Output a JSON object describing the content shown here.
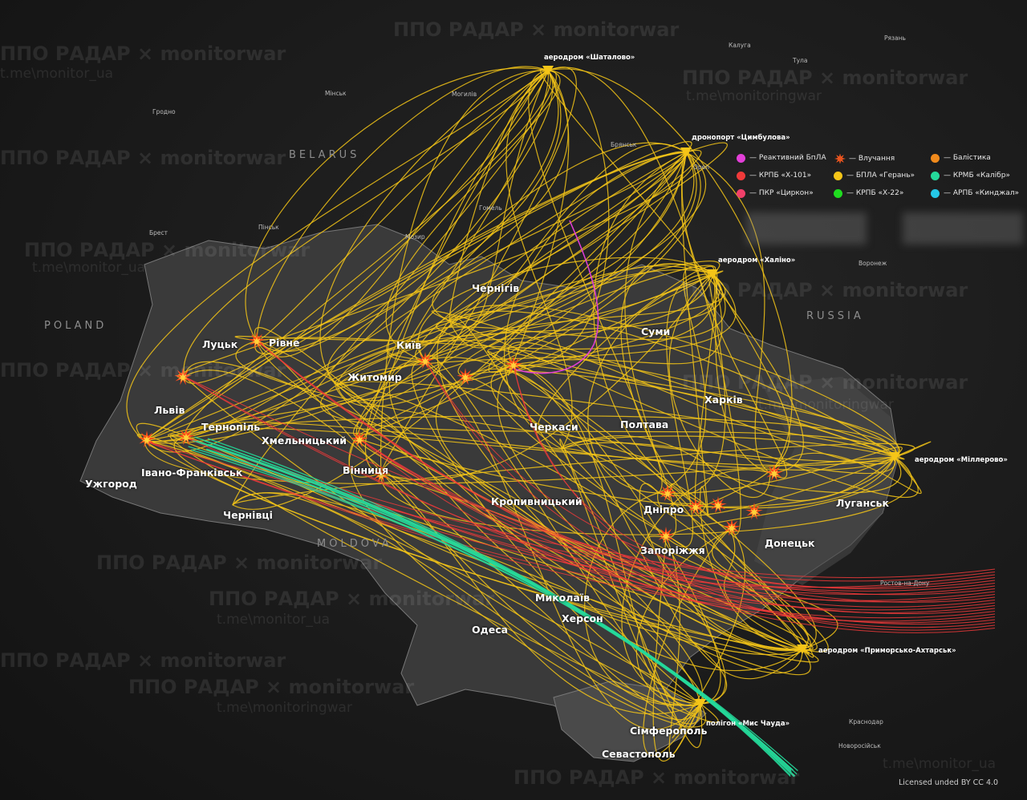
{
  "countries": [
    "BELARUS",
    "POLAND",
    "RUSSIA",
    "MOLDOVA"
  ],
  "major_cities": [
    "Луцьк",
    "Рівне",
    "Київ",
    "Житомир",
    "Чернігів",
    "Суми",
    "Харків",
    "Львів",
    "Тернопіль",
    "Хмельницький",
    "Вінниця",
    "Черкаси",
    "Полтава",
    "Івано-Франківськ",
    "Ужгород",
    "Чернівці",
    "Кропивницький",
    "Дніпро",
    "Луганськ",
    "Донецьк",
    "Запоріжжя",
    "Миколаїв",
    "Херсон",
    "Одеса",
    "Сімферополь",
    "Севастополь"
  ],
  "minor_cities": [
    "Мінськ",
    "Гродно",
    "Могилів",
    "Калуга",
    "Тула",
    "Рязань",
    "Брянськ",
    "Орел",
    "Гомель",
    "Мозир",
    "Пінськ",
    "Брест",
    "Воронеж",
    "Ростов-на-Дону",
    "Краснодар",
    "Новоросійськ"
  ],
  "targets": [
    "аеродром «Шаталово»",
    "дронопорт «Цимбулова»",
    "аеродром «Халіно»",
    "аеродром «Міллерово»",
    "аеродром «Приморсько-Ахтарськ»",
    "полігон «Мис Чауда»"
  ],
  "legend": [
    {
      "label": "— Реактивний БпЛА",
      "color": "#e33fd8"
    },
    {
      "label": "— Влучання",
      "icon": "explosion-icon",
      "color": "#e8541f"
    },
    {
      "label": "— Балістика",
      "color": "#f08a1c"
    },
    {
      "label": "— КРПБ «Х-101»",
      "color": "#f03a3a"
    },
    {
      "label": "— БПЛА «Герань»",
      "color": "#f5c518"
    },
    {
      "label": "— КРМБ «Калібр»",
      "color": "#25d99a"
    },
    {
      "label": "— ПКР «Циркон»",
      "color": "#f0406a"
    },
    {
      "label": "— КРПБ «Х-22»",
      "color": "#1fdc1f"
    },
    {
      "label": "— АРПБ «Кинджал»",
      "color": "#25c8e8"
    }
  ],
  "watermarks": [
    "ППО РАДАР × monitorwar",
    "t.me\\monitor_ua",
    "t.me\\monitoringwar"
  ],
  "license": "Licensed unded BY CC 4.0",
  "colors": {
    "geran": "#f5c518",
    "x101": "#f03a3a",
    "kalibr": "#25d99a",
    "jet": "#e33fd8"
  }
}
